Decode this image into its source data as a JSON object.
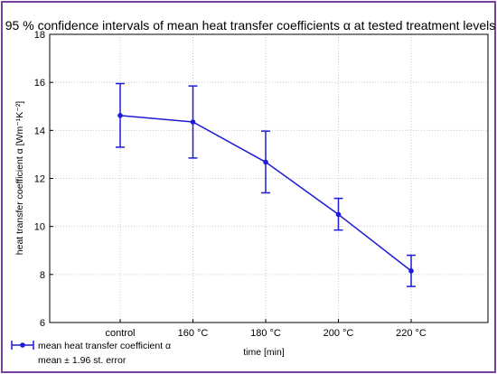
{
  "chart_data": {
    "type": "line",
    "title": "95 % confidence intervals of mean heat transfer coefficients α at tested treatment levels",
    "xlabel": "time [min]",
    "ylabel": "heat transfer coefficient α [Wm⁻¹K⁻²]",
    "categories": [
      "control",
      "160 °C",
      "180 °C",
      "200 °C",
      "220 °C"
    ],
    "ylim": [
      6,
      18
    ],
    "yticks": [
      6,
      8,
      10,
      12,
      14,
      16,
      18
    ],
    "grid": true,
    "series": [
      {
        "name": "mean heat transfer coefficient α",
        "values": [
          14.62,
          14.35,
          12.68,
          10.5,
          8.15
        ],
        "error_lower": [
          13.3,
          12.85,
          11.4,
          9.85,
          7.5
        ],
        "error_upper": [
          15.95,
          15.85,
          13.97,
          11.17,
          8.8
        ],
        "color": "#1c1cd6"
      }
    ],
    "legend": {
      "placement": "bottom-left",
      "entries": [
        "mean heat transfer coefficient α",
        "mean ± 1.96 st. error"
      ]
    }
  }
}
